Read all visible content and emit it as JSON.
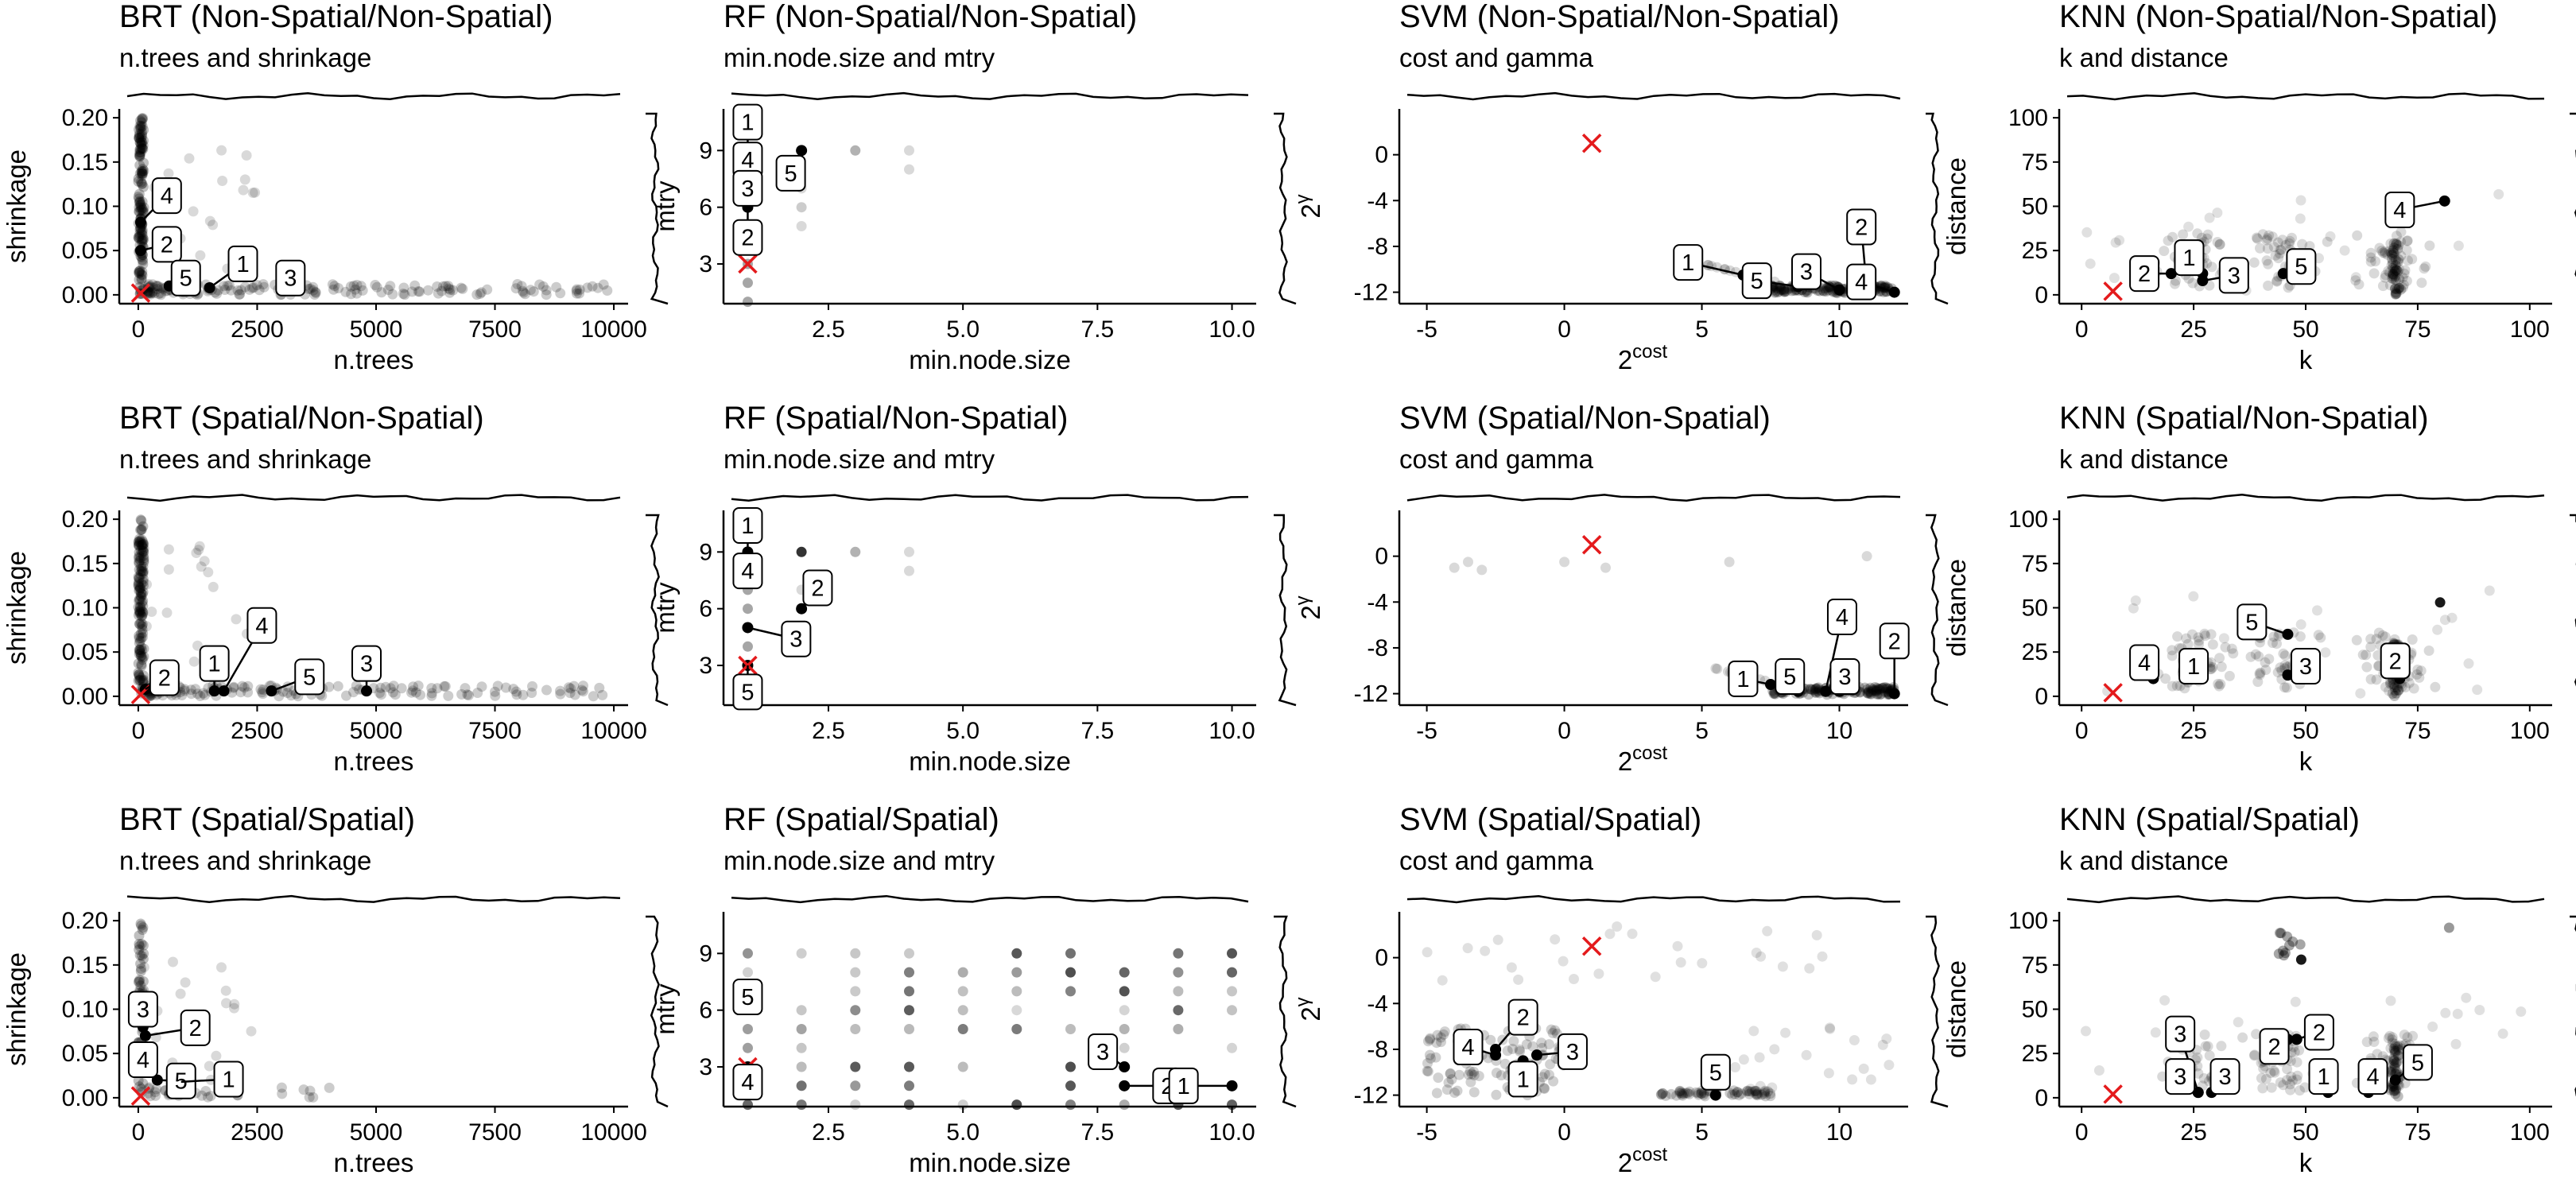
{
  "colors": {
    "point": "#000000",
    "marker": "#e41a1c",
    "frame": "#000000",
    "label_bg": "#ffffff"
  },
  "chart_data": [
    {
      "id": "brt-ns-ns",
      "type": "scatter",
      "title": "BRT (Non-Spatial/Non-Spatial)",
      "subtitle": "n.trees and shrinkage",
      "xlabel": "n.trees",
      "ylabel": "shrinkage",
      "xlim": [
        -400,
        10300
      ],
      "ylim": [
        -0.01,
        0.21
      ],
      "xticks": [
        0,
        2500,
        5000,
        7500,
        10000
      ],
      "yticks": [
        0,
        0.05,
        0.1,
        0.15,
        0.2
      ],
      "xtick_labels": [
        "0",
        "2500",
        "5000",
        "7500",
        "10000"
      ],
      "ytick_labels": [
        "0.00",
        "0.05",
        "0.10",
        "0.15",
        "0.20"
      ],
      "grid": false,
      "marker": {
        "x": 50,
        "y": 0.002
      },
      "labels": [
        {
          "text": "4",
          "x": 50,
          "y": 0.082,
          "lx": 600,
          "ly": 0.112
        },
        {
          "text": "2",
          "x": 50,
          "y": 0.05,
          "lx": 600,
          "ly": 0.057
        },
        {
          "text": "5",
          "x": 650,
          "y": 0.01,
          "lx": 1000,
          "ly": 0.019
        },
        {
          "text": "1",
          "x": 1500,
          "y": 0.008,
          "lx": 2200,
          "ly": 0.035
        },
        {
          "text": "3",
          "x": 3200,
          "y": 0.006,
          "lx": 3200,
          "ly": 0.019
        }
      ]
    },
    {
      "id": "rf-ns-ns",
      "type": "scatter",
      "title": "RF (Non-Spatial/Non-Spatial)",
      "subtitle": "min.node.size and mtry",
      "xlabel": "min.node.size",
      "ylabel": "mtry",
      "xlim": [
        0.55,
        10.45
      ],
      "ylim": [
        0.9,
        11.2
      ],
      "xticks": [
        2.5,
        5,
        7.5,
        10
      ],
      "yticks": [
        3,
        6,
        9
      ],
      "xtick_labels": [
        "2.5",
        "5.0",
        "7.5",
        "10.0"
      ],
      "ytick_labels": [
        "3",
        "6",
        "9"
      ],
      "grid": false,
      "marker": {
        "x": 1,
        "y": 3
      },
      "labels": [
        {
          "text": "1",
          "x": 1,
          "y": 9,
          "lx": 1,
          "ly": 10.5
        },
        {
          "text": "4",
          "x": 1,
          "y": 8,
          "lx": 1,
          "ly": 8.5
        },
        {
          "text": "5",
          "x": 2,
          "y": 9,
          "lx": 1.8,
          "ly": 7.8
        },
        {
          "text": "3",
          "x": 1,
          "y": 7,
          "lx": 1,
          "ly": 7
        },
        {
          "text": "2",
          "x": 1,
          "y": 6,
          "lx": 1,
          "ly": 4.4
        }
      ]
    },
    {
      "id": "svm-ns-ns",
      "type": "scatter",
      "title": "SVM (Non-Spatial/Non-Spatial)",
      "subtitle": "cost and gamma",
      "xlabel": "cost",
      "ylabel": "γ",
      "xlim": [
        -6,
        12.5
      ],
      "ylim": [
        -13,
        4
      ],
      "xticks": [
        -5,
        0,
        5,
        10
      ],
      "yticks": [
        0,
        -4,
        -8,
        -12
      ],
      "xtick_labels": [
        "-5",
        "0",
        "5",
        "10"
      ],
      "ytick_labels": [
        "0",
        "-4",
        "-8",
        "-12"
      ],
      "grid": false,
      "marker": {
        "x": 1,
        "y": 1
      },
      "labels": [
        {
          "text": "1",
          "x": 6.5,
          "y": -10.5,
          "lx": 4.5,
          "ly": -9.4
        },
        {
          "text": "5",
          "x": 8.5,
          "y": -11.5,
          "lx": 7,
          "ly": -11
        },
        {
          "text": "3",
          "x": 10,
          "y": -11.8,
          "lx": 8.8,
          "ly": -10.2
        },
        {
          "text": "2",
          "x": 11,
          "y": -11.8,
          "lx": 10.8,
          "ly": -6.3
        },
        {
          "text": "4",
          "x": 12,
          "y": -12,
          "lx": 10.8,
          "ly": -11.1
        }
      ]
    },
    {
      "id": "knn-ns-ns",
      "type": "scatter",
      "title": "KNN (Non-Spatial/Non-Spatial)",
      "subtitle": "k and distance",
      "xlabel": "k",
      "ylabel": "distance",
      "xlim": [
        -5,
        105
      ],
      "ylim": [
        -5,
        105
      ],
      "xticks": [
        0,
        25,
        50,
        75,
        100
      ],
      "yticks": [
        0,
        25,
        50,
        75,
        100
      ],
      "xtick_labels": [
        "0",
        "25",
        "50",
        "75",
        "100"
      ],
      "ytick_labels": [
        "0",
        "25",
        "50",
        "75",
        "100"
      ],
      "grid": false,
      "marker": {
        "x": 7,
        "y": 2
      },
      "labels": [
        {
          "text": "4",
          "x": 81,
          "y": 53,
          "lx": 71,
          "ly": 48
        },
        {
          "text": "2",
          "x": 20,
          "y": 12,
          "lx": 14,
          "ly": 12
        },
        {
          "text": "1",
          "x": 27,
          "y": 12,
          "lx": 24,
          "ly": 21
        },
        {
          "text": "3",
          "x": 27,
          "y": 8,
          "lx": 34,
          "ly": 11
        },
        {
          "text": "5",
          "x": 45,
          "y": 12,
          "lx": 49,
          "ly": 16
        }
      ]
    },
    {
      "id": "brt-s-ns",
      "type": "scatter",
      "title": "BRT (Spatial/Non-Spatial)",
      "subtitle": "n.trees and shrinkage",
      "xlabel": "n.trees",
      "ylabel": "shrinkage",
      "xlim": [
        -400,
        10300
      ],
      "ylim": [
        -0.01,
        0.21
      ],
      "xticks": [
        0,
        2500,
        5000,
        7500,
        10000
      ],
      "yticks": [
        0,
        0.05,
        0.1,
        0.15,
        0.2
      ],
      "xtick_labels": [
        "0",
        "2500",
        "5000",
        "7500",
        "10000"
      ],
      "ytick_labels": [
        "0.00",
        "0.05",
        "0.10",
        "0.15",
        "0.20"
      ],
      "grid": false,
      "marker": {
        "x": 50,
        "y": 0.002
      },
      "labels": [
        {
          "text": "2",
          "x": 150,
          "y": 0.008,
          "lx": 550,
          "ly": 0.021
        },
        {
          "text": "1",
          "x": 1600,
          "y": 0.006,
          "lx": 1600,
          "ly": 0.037
        },
        {
          "text": "4",
          "x": 1800,
          "y": 0.006,
          "lx": 2600,
          "ly": 0.08
        },
        {
          "text": "5",
          "x": 2800,
          "y": 0.006,
          "lx": 3600,
          "ly": 0.022
        },
        {
          "text": "3",
          "x": 4800,
          "y": 0.006,
          "lx": 4800,
          "ly": 0.037
        }
      ]
    },
    {
      "id": "rf-s-ns",
      "type": "scatter",
      "title": "RF (Spatial/Non-Spatial)",
      "subtitle": "min.node.size and mtry",
      "xlabel": "min.node.size",
      "ylabel": "mtry",
      "xlim": [
        0.55,
        10.45
      ],
      "ylim": [
        0.9,
        11.2
      ],
      "xticks": [
        2.5,
        5,
        7.5,
        10
      ],
      "yticks": [
        3,
        6,
        9
      ],
      "xtick_labels": [
        "2.5",
        "5.0",
        "7.5",
        "10.0"
      ],
      "ytick_labels": [
        "3",
        "6",
        "9"
      ],
      "grid": false,
      "marker": {
        "x": 1,
        "y": 3
      },
      "labels": [
        {
          "text": "1",
          "x": 1,
          "y": 9,
          "lx": 1,
          "ly": 10.4
        },
        {
          "text": "4",
          "x": 1,
          "y": 7.5,
          "lx": 1,
          "ly": 8
        },
        {
          "text": "2",
          "x": 2,
          "y": 6,
          "lx": 2.3,
          "ly": 7.1
        },
        {
          "text": "3",
          "x": 1,
          "y": 5,
          "lx": 1.9,
          "ly": 4.4
        },
        {
          "text": "5",
          "x": 1,
          "y": 3,
          "lx": 1,
          "ly": 1.6
        }
      ]
    },
    {
      "id": "svm-s-ns",
      "type": "scatter",
      "title": "SVM (Spatial/Non-Spatial)",
      "subtitle": "cost and gamma",
      "xlabel": "cost",
      "ylabel": "γ",
      "xlim": [
        -6,
        12.5
      ],
      "ylim": [
        -13,
        4
      ],
      "xticks": [
        -5,
        0,
        5,
        10
      ],
      "yticks": [
        0,
        -4,
        -8,
        -12
      ],
      "xtick_labels": [
        "-5",
        "0",
        "5",
        "10"
      ],
      "ytick_labels": [
        "0",
        "-4",
        "-8",
        "-12"
      ],
      "grid": false,
      "marker": {
        "x": 1,
        "y": 1
      },
      "labels": [
        {
          "text": "4",
          "x": 9.5,
          "y": -11.8,
          "lx": 10.1,
          "ly": -5.3
        },
        {
          "text": "2",
          "x": 12,
          "y": -12,
          "lx": 12,
          "ly": -7.4
        },
        {
          "text": "1",
          "x": 7.5,
          "y": -11.2,
          "lx": 6.5,
          "ly": -10.7
        },
        {
          "text": "5",
          "x": 8.5,
          "y": -11.8,
          "lx": 8.2,
          "ly": -10.5
        },
        {
          "text": "3",
          "x": 10,
          "y": -11.8,
          "lx": 10.2,
          "ly": -10.5
        }
      ]
    },
    {
      "id": "knn-s-ns",
      "type": "scatter",
      "title": "KNN (Spatial/Non-Spatial)",
      "subtitle": "k and distance",
      "xlabel": "k",
      "ylabel": "distance",
      "xlim": [
        -5,
        105
      ],
      "ylim": [
        -5,
        105
      ],
      "xticks": [
        0,
        25,
        50,
        75,
        100
      ],
      "yticks": [
        0,
        25,
        50,
        75,
        100
      ],
      "xtick_labels": [
        "0",
        "25",
        "50",
        "75",
        "100"
      ],
      "ytick_labels": [
        "0",
        "25",
        "50",
        "75",
        "100"
      ],
      "grid": false,
      "marker": {
        "x": 7,
        "y": 2
      },
      "labels": [
        {
          "text": "5",
          "x": 46,
          "y": 35,
          "lx": 38,
          "ly": 42
        },
        {
          "text": "4",
          "x": 16,
          "y": 10,
          "lx": 14,
          "ly": 19
        },
        {
          "text": "1",
          "x": 26,
          "y": 12,
          "lx": 25,
          "ly": 17
        },
        {
          "text": "3",
          "x": 46,
          "y": 12,
          "lx": 50,
          "ly": 17
        },
        {
          "text": "2",
          "x": 71,
          "y": 10,
          "lx": 70,
          "ly": 20
        }
      ]
    },
    {
      "id": "brt-s-s",
      "type": "scatter",
      "title": "BRT (Spatial/Spatial)",
      "subtitle": "n.trees and shrinkage",
      "xlabel": "n.trees",
      "ylabel": "shrinkage",
      "xlim": [
        -400,
        10300
      ],
      "ylim": [
        -0.01,
        0.21
      ],
      "xticks": [
        0,
        2500,
        5000,
        7500,
        10000
      ],
      "yticks": [
        0,
        0.05,
        0.1,
        0.15,
        0.2
      ],
      "xtick_labels": [
        "0",
        "2500",
        "5000",
        "7500",
        "10000"
      ],
      "ytick_labels": [
        "0.00",
        "0.05",
        "0.10",
        "0.15",
        "0.20"
      ],
      "grid": false,
      "marker": {
        "x": 50,
        "y": 0.002
      },
      "labels": [
        {
          "text": "3",
          "x": 100,
          "y": 0.08,
          "lx": 100,
          "ly": 0.1
        },
        {
          "text": "2",
          "x": 150,
          "y": 0.07,
          "lx": 1200,
          "ly": 0.079
        },
        {
          "text": "4",
          "x": 100,
          "y": 0.03,
          "lx": 100,
          "ly": 0.043
        },
        {
          "text": "5",
          "x": 400,
          "y": 0.02,
          "lx": 900,
          "ly": 0.019
        },
        {
          "text": "1",
          "x": 900,
          "y": 0.018,
          "lx": 1900,
          "ly": 0.021
        }
      ]
    },
    {
      "id": "rf-s-s",
      "type": "scatter",
      "title": "RF (Spatial/Spatial)",
      "subtitle": "min.node.size and mtry",
      "xlabel": "min.node.size",
      "ylabel": "mtry",
      "xlim": [
        0.55,
        10.45
      ],
      "ylim": [
        0.9,
        11.2
      ],
      "xticks": [
        2.5,
        5,
        7.5,
        10
      ],
      "yticks": [
        3,
        6,
        9
      ],
      "xtick_labels": [
        "2.5",
        "5.0",
        "7.5",
        "10.0"
      ],
      "ytick_labels": [
        "3",
        "6",
        "9"
      ],
      "grid": false,
      "marker": {
        "x": 1,
        "y": 3
      },
      "labels": [
        {
          "text": "5",
          "x": 1,
          "y": 7,
          "lx": 1,
          "ly": 6.7
        },
        {
          "text": "4",
          "x": 1,
          "y": 3,
          "lx": 1,
          "ly": 2.2
        },
        {
          "text": "3",
          "x": 8,
          "y": 3,
          "lx": 7.6,
          "ly": 3.8
        },
        {
          "text": "2",
          "x": 8,
          "y": 2,
          "lx": 8.8,
          "ly": 2
        },
        {
          "text": "1",
          "x": 10,
          "y": 2,
          "lx": 9.1,
          "ly": 2
        }
      ]
    },
    {
      "id": "svm-s-s",
      "type": "scatter",
      "title": "SVM (Spatial/Spatial)",
      "subtitle": "cost and gamma",
      "xlabel": "cost",
      "ylabel": "γ",
      "xlim": [
        -6,
        12.5
      ],
      "ylim": [
        -13,
        4
      ],
      "xticks": [
        -5,
        0,
        5,
        10
      ],
      "yticks": [
        0,
        -4,
        -8,
        -12
      ],
      "xtick_labels": [
        "-5",
        "0",
        "5",
        "10"
      ],
      "ytick_labels": [
        "0",
        "-4",
        "-8",
        "-12"
      ],
      "grid": false,
      "marker": {
        "x": 1,
        "y": 1
      },
      "labels": [
        {
          "text": "2",
          "x": -2.5,
          "y": -8,
          "lx": -1.5,
          "ly": -5.2
        },
        {
          "text": "4",
          "x": -2.5,
          "y": -8.5,
          "lx": -3.5,
          "ly": -7.8
        },
        {
          "text": "3",
          "x": -1,
          "y": -8.5,
          "lx": 0.3,
          "ly": -8.2
        },
        {
          "text": "1",
          "x": -1.5,
          "y": -9,
          "lx": -1.5,
          "ly": -10.6
        },
        {
          "text": "5",
          "x": 5.5,
          "y": -12,
          "lx": 5.5,
          "ly": -10
        }
      ]
    },
    {
      "id": "knn-s-s",
      "type": "scatter",
      "title": "KNN (Spatial/Spatial)",
      "subtitle": "k and distance",
      "xlabel": "k",
      "ylabel": "distance",
      "xlim": [
        -5,
        105
      ],
      "ylim": [
        -5,
        105
      ],
      "xticks": [
        0,
        25,
        50,
        75,
        100
      ],
      "yticks": [
        0,
        25,
        50,
        75,
        100
      ],
      "xtick_labels": [
        "0",
        "25",
        "50",
        "75",
        "100"
      ],
      "ytick_labels": [
        "0",
        "25",
        "50",
        "75",
        "100"
      ],
      "grid": false,
      "marker": {
        "x": 7,
        "y": 2
      },
      "labels": [
        {
          "text": "3",
          "x": 26,
          "y": 3,
          "lx": 22,
          "ly": 36
        },
        {
          "text": "3",
          "x": 26,
          "y": 3,
          "lx": 22,
          "ly": 12
        },
        {
          "text": "3",
          "x": 29,
          "y": 3,
          "lx": 32,
          "ly": 12
        },
        {
          "text": "2",
          "x": 46,
          "y": 33,
          "lx": 43,
          "ly": 29
        },
        {
          "text": "2",
          "x": 48,
          "y": 33,
          "lx": 53,
          "ly": 37
        },
        {
          "text": "1",
          "x": 55,
          "y": 3,
          "lx": 54,
          "ly": 12
        },
        {
          "text": "4",
          "x": 64,
          "y": 3,
          "lx": 65,
          "ly": 12
        },
        {
          "text": "5",
          "x": 70,
          "y": 10,
          "lx": 75,
          "ly": 20
        }
      ]
    }
  ]
}
